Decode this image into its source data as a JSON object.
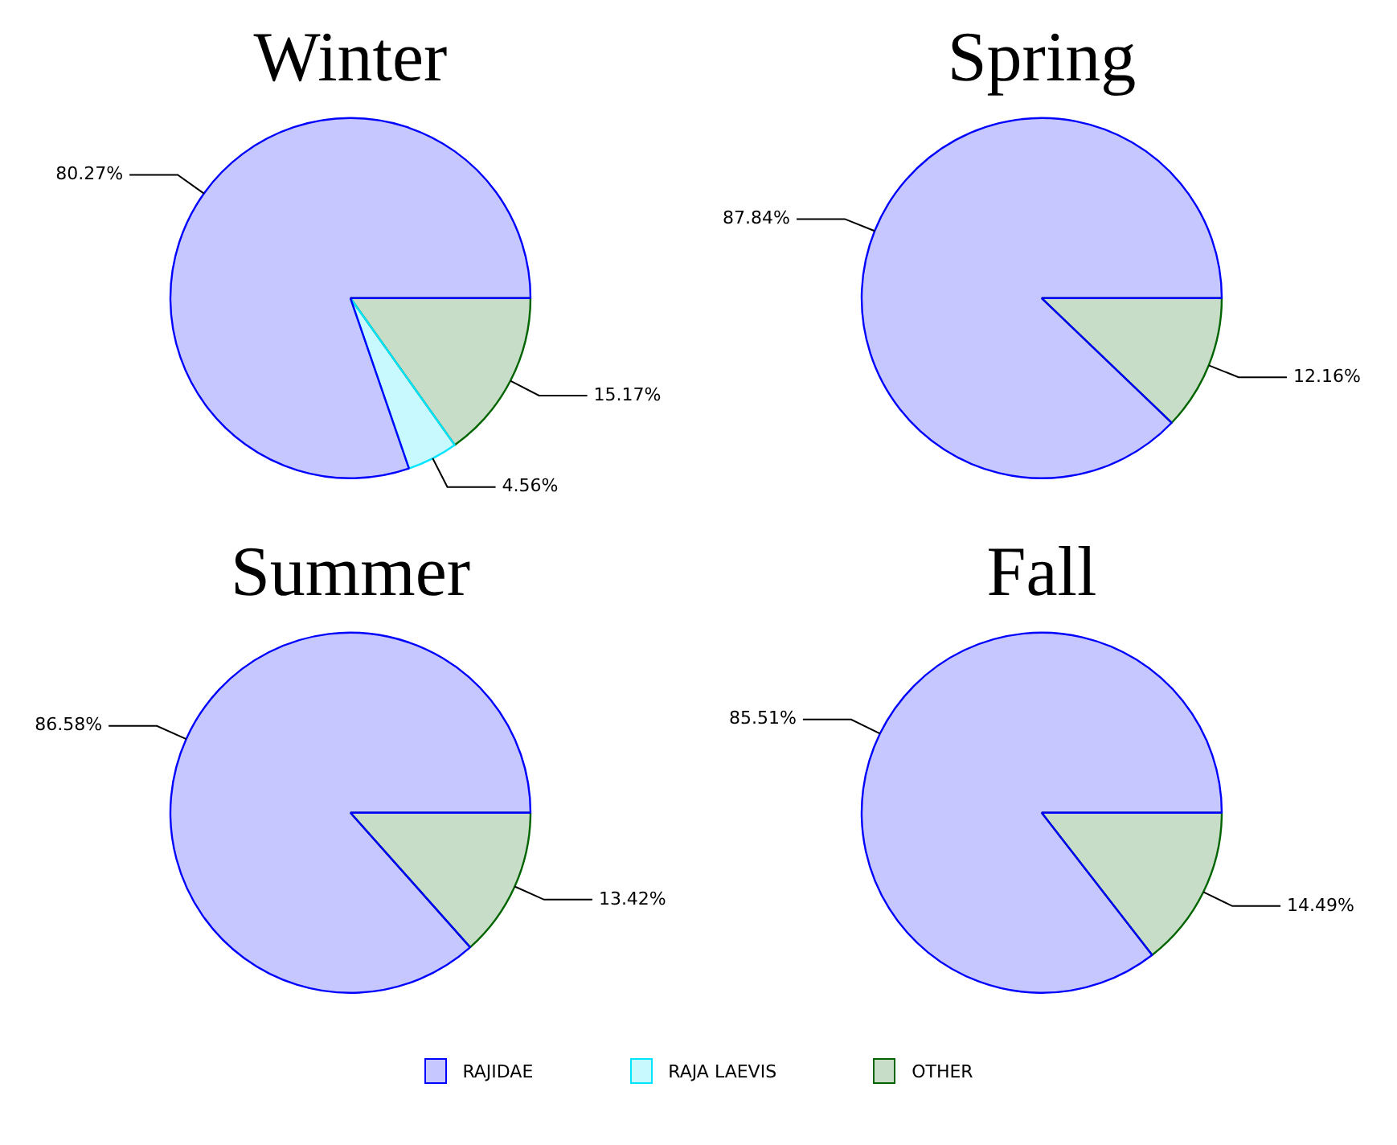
{
  "chart_data": [
    {
      "type": "pie",
      "title": "Winter",
      "categories": [
        "RAJIDAE",
        "RAJA LAEVIS",
        "OTHER"
      ],
      "values": [
        80.27,
        4.56,
        15.17
      ],
      "colors": [
        "#0000ff",
        "#00e5ff",
        "#006400"
      ],
      "value_labels": [
        "80.27%",
        "4.56%",
        "15.17%"
      ],
      "legend": "bottom"
    },
    {
      "type": "pie",
      "title": "Spring",
      "categories": [
        null,
        null
      ],
      "values": [
        87.84,
        12.16
      ],
      "colors": [
        "#0000ff",
        "#006400"
      ],
      "value_labels": [
        "87.84%",
        "12.16%"
      ]
    },
    {
      "type": "pie",
      "title": "Summer",
      "categories": [
        null,
        null
      ],
      "values": [
        86.58,
        13.42
      ],
      "colors": [
        "#0000ff",
        "#006400"
      ],
      "value_labels": [
        "86.58%",
        "13.42%"
      ]
    },
    {
      "type": "pie",
      "title": "Fall",
      "categories": [
        null,
        null
      ],
      "values": [
        85.51,
        14.49
      ],
      "colors": [
        "#0000ff",
        "#006400"
      ],
      "value_labels": [
        "85.51%",
        "14.49%"
      ]
    }
  ]
}
